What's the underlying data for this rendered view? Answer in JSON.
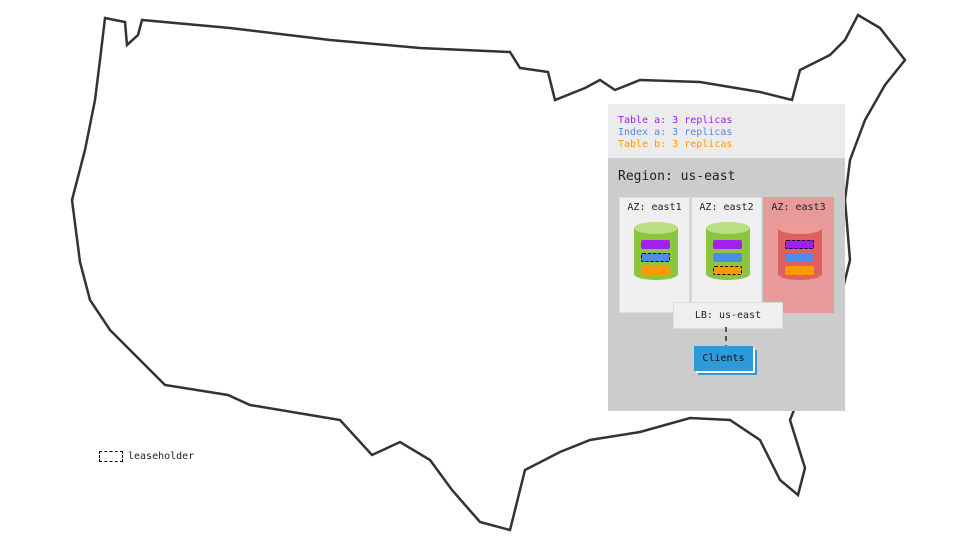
{
  "legend": [
    {
      "text": "Table a: 3 replicas",
      "color": "#a020f0"
    },
    {
      "text": "Index a: 3 replicas",
      "color": "#4f8be8"
    },
    {
      "text": "Table b: 3 replicas",
      "color": "#ff9900"
    }
  ],
  "region": {
    "title": "Region: us-east"
  },
  "azs": [
    {
      "label": "AZ: east1",
      "status": "healthy",
      "leaseholder": "Index a"
    },
    {
      "label": "AZ: east2",
      "status": "healthy",
      "leaseholder": "Table b"
    },
    {
      "label": "AZ: east3",
      "status": "failed",
      "leaseholder": "Table a"
    }
  ],
  "lb": "LB: us-east",
  "clients": "Clients",
  "leaseholder_legend": "leaseholder",
  "colors": {
    "healthy": "#8cc63f",
    "failed": "#e06060",
    "table_a": "#a020f0",
    "index_a": "#4f8be8",
    "table_b": "#ff9900",
    "clients": "#2e9ad8"
  }
}
